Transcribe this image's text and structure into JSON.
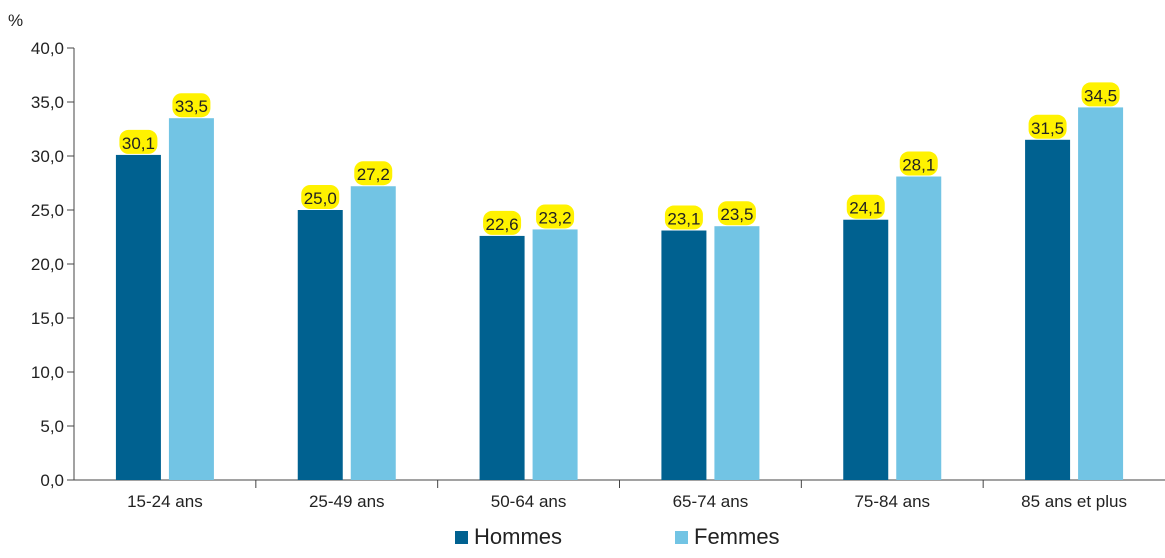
{
  "chart_data": {
    "type": "bar",
    "title": "",
    "xlabel": "",
    "ylabel": "%",
    "ylim": [
      0,
      40
    ],
    "yticks": [
      "0,0",
      "5,0",
      "10,0",
      "15,0",
      "20,0",
      "25,0",
      "30,0",
      "35,0",
      "40,0"
    ],
    "categories": [
      "15-24 ans",
      "25-49 ans",
      "50-64 ans",
      "65-74 ans",
      "75-84 ans",
      "85 ans et plus"
    ],
    "series": [
      {
        "name": "Hommes",
        "color": "#006190",
        "values": [
          30.1,
          25.0,
          22.6,
          23.1,
          24.1,
          31.5
        ],
        "labels": [
          "30,1",
          "25,0",
          "22,6",
          "23,1",
          "24,1",
          "31,5"
        ]
      },
      {
        "name": "Femmes",
        "color": "#72C4E4",
        "values": [
          33.5,
          27.2,
          23.2,
          23.5,
          28.1,
          34.5
        ],
        "labels": [
          "33,5",
          "27,2",
          "23,2",
          "23,5",
          "28,1",
          "34,5"
        ]
      }
    ],
    "grid": false,
    "legend_position": "bottom",
    "label_highlight_color": "#FFF200"
  }
}
